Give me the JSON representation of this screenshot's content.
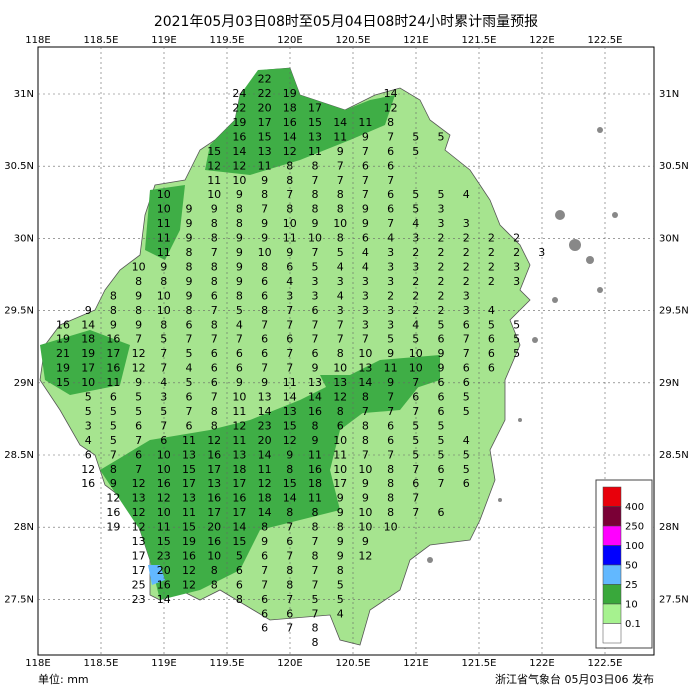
{
  "header": {
    "title": "2021年05月03日08时至05月04日08时24小时累计雨量预报"
  },
  "axes": {
    "lon_labels": [
      "118E",
      "118.5E",
      "119E",
      "119.5E",
      "120E",
      "120.5E",
      "121E",
      "121.5E",
      "122E",
      "122.5E"
    ],
    "lat_labels": [
      "31N",
      "30.5N",
      "30N",
      "29.5N",
      "29N",
      "28.5N",
      "28N",
      "27.5N"
    ]
  },
  "grid": {
    "rows": [
      [
        null,
        null,
        null,
        null,
        null,
        null,
        null,
        null,
        22,
        null,
        null,
        null,
        null,
        null,
        null,
        null,
        null,
        null,
        null,
        null,
        null,
        null
      ],
      [
        null,
        null,
        null,
        null,
        null,
        null,
        null,
        24,
        22,
        19,
        null,
        null,
        null,
        14,
        null,
        null,
        null,
        null,
        null,
        null,
        null,
        null
      ],
      [
        null,
        null,
        null,
        null,
        null,
        null,
        null,
        22,
        20,
        18,
        17,
        null,
        null,
        12,
        null,
        null,
        null,
        null,
        null,
        null,
        null,
        null
      ],
      [
        null,
        null,
        null,
        null,
        null,
        null,
        null,
        19,
        17,
        16,
        15,
        14,
        11,
        8,
        null,
        null,
        null,
        null,
        null,
        null,
        null,
        null
      ],
      [
        null,
        null,
        null,
        null,
        null,
        null,
        null,
        16,
        15,
        14,
        13,
        11,
        9,
        7,
        5,
        5,
        null,
        null,
        null,
        null,
        null,
        null
      ],
      [
        null,
        null,
        null,
        null,
        null,
        null,
        15,
        14,
        13,
        12,
        11,
        9,
        7,
        6,
        5,
        null,
        null,
        null,
        null,
        null,
        null,
        null
      ],
      [
        null,
        null,
        null,
        null,
        null,
        null,
        12,
        12,
        11,
        8,
        8,
        7,
        6,
        6,
        null,
        null,
        null,
        null,
        null,
        null,
        null,
        null
      ],
      [
        null,
        null,
        null,
        null,
        null,
        null,
        11,
        10,
        9,
        8,
        7,
        7,
        7,
        7,
        null,
        null,
        null,
        null,
        null,
        null,
        null,
        null
      ],
      [
        null,
        null,
        null,
        null,
        10,
        null,
        10,
        9,
        8,
        7,
        8,
        8,
        7,
        6,
        5,
        5,
        4,
        null,
        null,
        null,
        null,
        null
      ],
      [
        null,
        null,
        null,
        null,
        10,
        9,
        9,
        8,
        7,
        8,
        8,
        8,
        9,
        6,
        5,
        3,
        null,
        null,
        null,
        null,
        null,
        null
      ],
      [
        null,
        null,
        null,
        null,
        11,
        9,
        8,
        8,
        9,
        10,
        9,
        10,
        9,
        7,
        4,
        3,
        3,
        null,
        null,
        null,
        null,
        null
      ],
      [
        null,
        null,
        null,
        null,
        11,
        9,
        8,
        9,
        9,
        11,
        10,
        8,
        6,
        4,
        3,
        2,
        2,
        2,
        2,
        null,
        null,
        null
      ],
      [
        null,
        null,
        null,
        null,
        11,
        8,
        7,
        9,
        10,
        9,
        7,
        5,
        4,
        3,
        2,
        2,
        2,
        2,
        2,
        3,
        null,
        null
      ],
      [
        null,
        null,
        null,
        10,
        9,
        8,
        8,
        9,
        8,
        6,
        5,
        4,
        4,
        3,
        3,
        2,
        2,
        2,
        3,
        null,
        null,
        null
      ],
      [
        null,
        null,
        null,
        8,
        8,
        9,
        8,
        9,
        6,
        4,
        3,
        3,
        3,
        3,
        2,
        2,
        2,
        2,
        3,
        null,
        null,
        null
      ],
      [
        null,
        null,
        8,
        9,
        10,
        9,
        6,
        8,
        6,
        3,
        3,
        4,
        3,
        2,
        2,
        2,
        3,
        null,
        null,
        null,
        null,
        null
      ],
      [
        null,
        9,
        8,
        8,
        10,
        8,
        7,
        5,
        8,
        7,
        6,
        3,
        3,
        3,
        2,
        2,
        3,
        4,
        null,
        null,
        null,
        null
      ],
      [
        16,
        14,
        9,
        9,
        8,
        6,
        8,
        4,
        7,
        7,
        7,
        7,
        3,
        3,
        4,
        5,
        6,
        5,
        5,
        null,
        null,
        null
      ],
      [
        19,
        18,
        16,
        7,
        5,
        7,
        7,
        7,
        6,
        6,
        7,
        7,
        7,
        5,
        5,
        6,
        7,
        6,
        5,
        null,
        null,
        null
      ],
      [
        21,
        19,
        17,
        12,
        7,
        5,
        6,
        6,
        6,
        7,
        6,
        8,
        10,
        9,
        10,
        9,
        7,
        6,
        5,
        null,
        null,
        null
      ],
      [
        19,
        17,
        16,
        12,
        7,
        4,
        6,
        6,
        7,
        7,
        9,
        10,
        13,
        11,
        10,
        9,
        6,
        6,
        null,
        null,
        null,
        null
      ],
      [
        15,
        10,
        11,
        9,
        4,
        5,
        6,
        9,
        9,
        11,
        13,
        13,
        14,
        9,
        7,
        6,
        6,
        null,
        null,
        null,
        null,
        null
      ],
      [
        null,
        5,
        6,
        5,
        3,
        6,
        7,
        10,
        13,
        14,
        14,
        12,
        8,
        7,
        6,
        6,
        5,
        null,
        null,
        null,
        null,
        null
      ],
      [
        null,
        5,
        5,
        5,
        5,
        7,
        8,
        11,
        14,
        13,
        16,
        8,
        7,
        7,
        7,
        6,
        5,
        null,
        null,
        null,
        null,
        null
      ],
      [
        null,
        3,
        5,
        6,
        7,
        6,
        8,
        12,
        23,
        15,
        8,
        6,
        8,
        6,
        5,
        5,
        null,
        null,
        null,
        null,
        null,
        null
      ],
      [
        null,
        4,
        5,
        7,
        6,
        11,
        12,
        11,
        20,
        12,
        9,
        10,
        8,
        6,
        5,
        5,
        4,
        null,
        null,
        null,
        null,
        null
      ],
      [
        null,
        6,
        7,
        6,
        10,
        13,
        16,
        13,
        14,
        9,
        11,
        11,
        7,
        7,
        5,
        5,
        5,
        null,
        null,
        null,
        null,
        null
      ],
      [
        null,
        12,
        8,
        7,
        10,
        15,
        17,
        18,
        11,
        8,
        16,
        10,
        10,
        8,
        7,
        6,
        5,
        null,
        null,
        null,
        null,
        null
      ],
      [
        null,
        16,
        9,
        12,
        16,
        17,
        13,
        17,
        12,
        15,
        18,
        17,
        9,
        8,
        6,
        7,
        6,
        null,
        null,
        null,
        null,
        null
      ],
      [
        null,
        null,
        12,
        13,
        12,
        13,
        16,
        16,
        18,
        14,
        11,
        9,
        9,
        8,
        7,
        null,
        null,
        null,
        null,
        null,
        null,
        null
      ],
      [
        null,
        null,
        16,
        12,
        10,
        11,
        17,
        17,
        14,
        8,
        8,
        9,
        10,
        8,
        7,
        6,
        null,
        null,
        null,
        null,
        null,
        null
      ],
      [
        null,
        null,
        19,
        12,
        11,
        15,
        20,
        14,
        8,
        7,
        8,
        8,
        10,
        10,
        null,
        null,
        null,
        null,
        null,
        null,
        null,
        null
      ],
      [
        null,
        null,
        null,
        13,
        15,
        19,
        16,
        15,
        9,
        6,
        7,
        9,
        9,
        null,
        null,
        null,
        null,
        null,
        null,
        null,
        null,
        null
      ],
      [
        null,
        null,
        null,
        17,
        23,
        16,
        10,
        5,
        6,
        7,
        8,
        9,
        12,
        null,
        null,
        null,
        null,
        null,
        null,
        null,
        null,
        null
      ],
      [
        null,
        null,
        null,
        17,
        20,
        12,
        8,
        6,
        7,
        8,
        7,
        8,
        null,
        null,
        null,
        null,
        null,
        null,
        null,
        null,
        null,
        null
      ],
      [
        null,
        null,
        null,
        25,
        16,
        12,
        8,
        6,
        7,
        8,
        7,
        5,
        null,
        null,
        null,
        null,
        null,
        null,
        null,
        null,
        null,
        null
      ],
      [
        null,
        null,
        null,
        23,
        14,
        null,
        null,
        8,
        6,
        7,
        5,
        5,
        null,
        null,
        null,
        null,
        null,
        null,
        null,
        null,
        null,
        null
      ],
      [
        null,
        null,
        null,
        null,
        null,
        null,
        null,
        null,
        6,
        6,
        7,
        4,
        null,
        null,
        null,
        null,
        null,
        null,
        null,
        null,
        null,
        null
      ],
      [
        null,
        null,
        null,
        null,
        null,
        null,
        null,
        null,
        6,
        7,
        8,
        null,
        null,
        null,
        null,
        null,
        null,
        null,
        null,
        null,
        null,
        null
      ],
      [
        null,
        null,
        null,
        null,
        null,
        null,
        null,
        null,
        null,
        null,
        8,
        null,
        null,
        null,
        null,
        null,
        null,
        null,
        null,
        null,
        null,
        null
      ]
    ]
  },
  "legend": {
    "items": [
      {
        "value": 400,
        "color": "#e8000b"
      },
      {
        "value": 250,
        "color": "#7a0036"
      },
      {
        "value": 100,
        "color": "#ff00ff"
      },
      {
        "value": 50,
        "color": "#0000ff"
      },
      {
        "value": 25,
        "color": "#62b8ff"
      },
      {
        "value": 10,
        "color": "#39a83b"
      },
      {
        "value": 0.1,
        "color": "#a6f28f"
      }
    ]
  },
  "footer": {
    "unit": "单位: mm",
    "issuer": "浙江省气象台 05月03日06 发布"
  }
}
